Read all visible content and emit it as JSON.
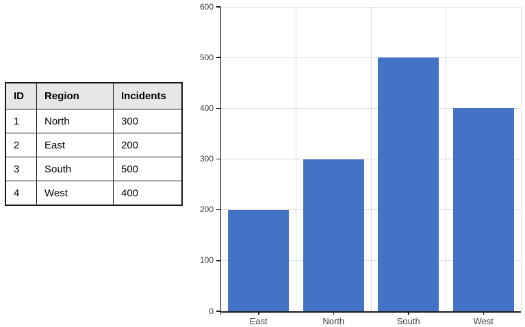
{
  "table": {
    "headers": [
      "ID",
      "Region",
      "Incidents"
    ],
    "rows": [
      [
        "1",
        "North",
        "300"
      ],
      [
        "2",
        "East",
        "200"
      ],
      [
        "3",
        "South",
        "500"
      ],
      [
        "4",
        "West",
        "400"
      ]
    ],
    "header_bg": "#E7E7E7",
    "border_color": "#141414"
  },
  "chart_data": {
    "type": "bar",
    "categories": [
      "East",
      "North",
      "South",
      "West"
    ],
    "values": [
      200,
      300,
      500,
      400
    ],
    "title": "",
    "xlabel": "",
    "ylabel": "",
    "ylim": [
      0,
      600
    ],
    "yticks": [
      0,
      100,
      200,
      300,
      400,
      500,
      600
    ],
    "grid": "horizontal-and-vertical",
    "legend_position": "none",
    "bar_color": "#4472C4",
    "gridline_color": "#DCDCDC",
    "axis_color": "#1A1A1A",
    "tick_label_color": "#404040"
  }
}
